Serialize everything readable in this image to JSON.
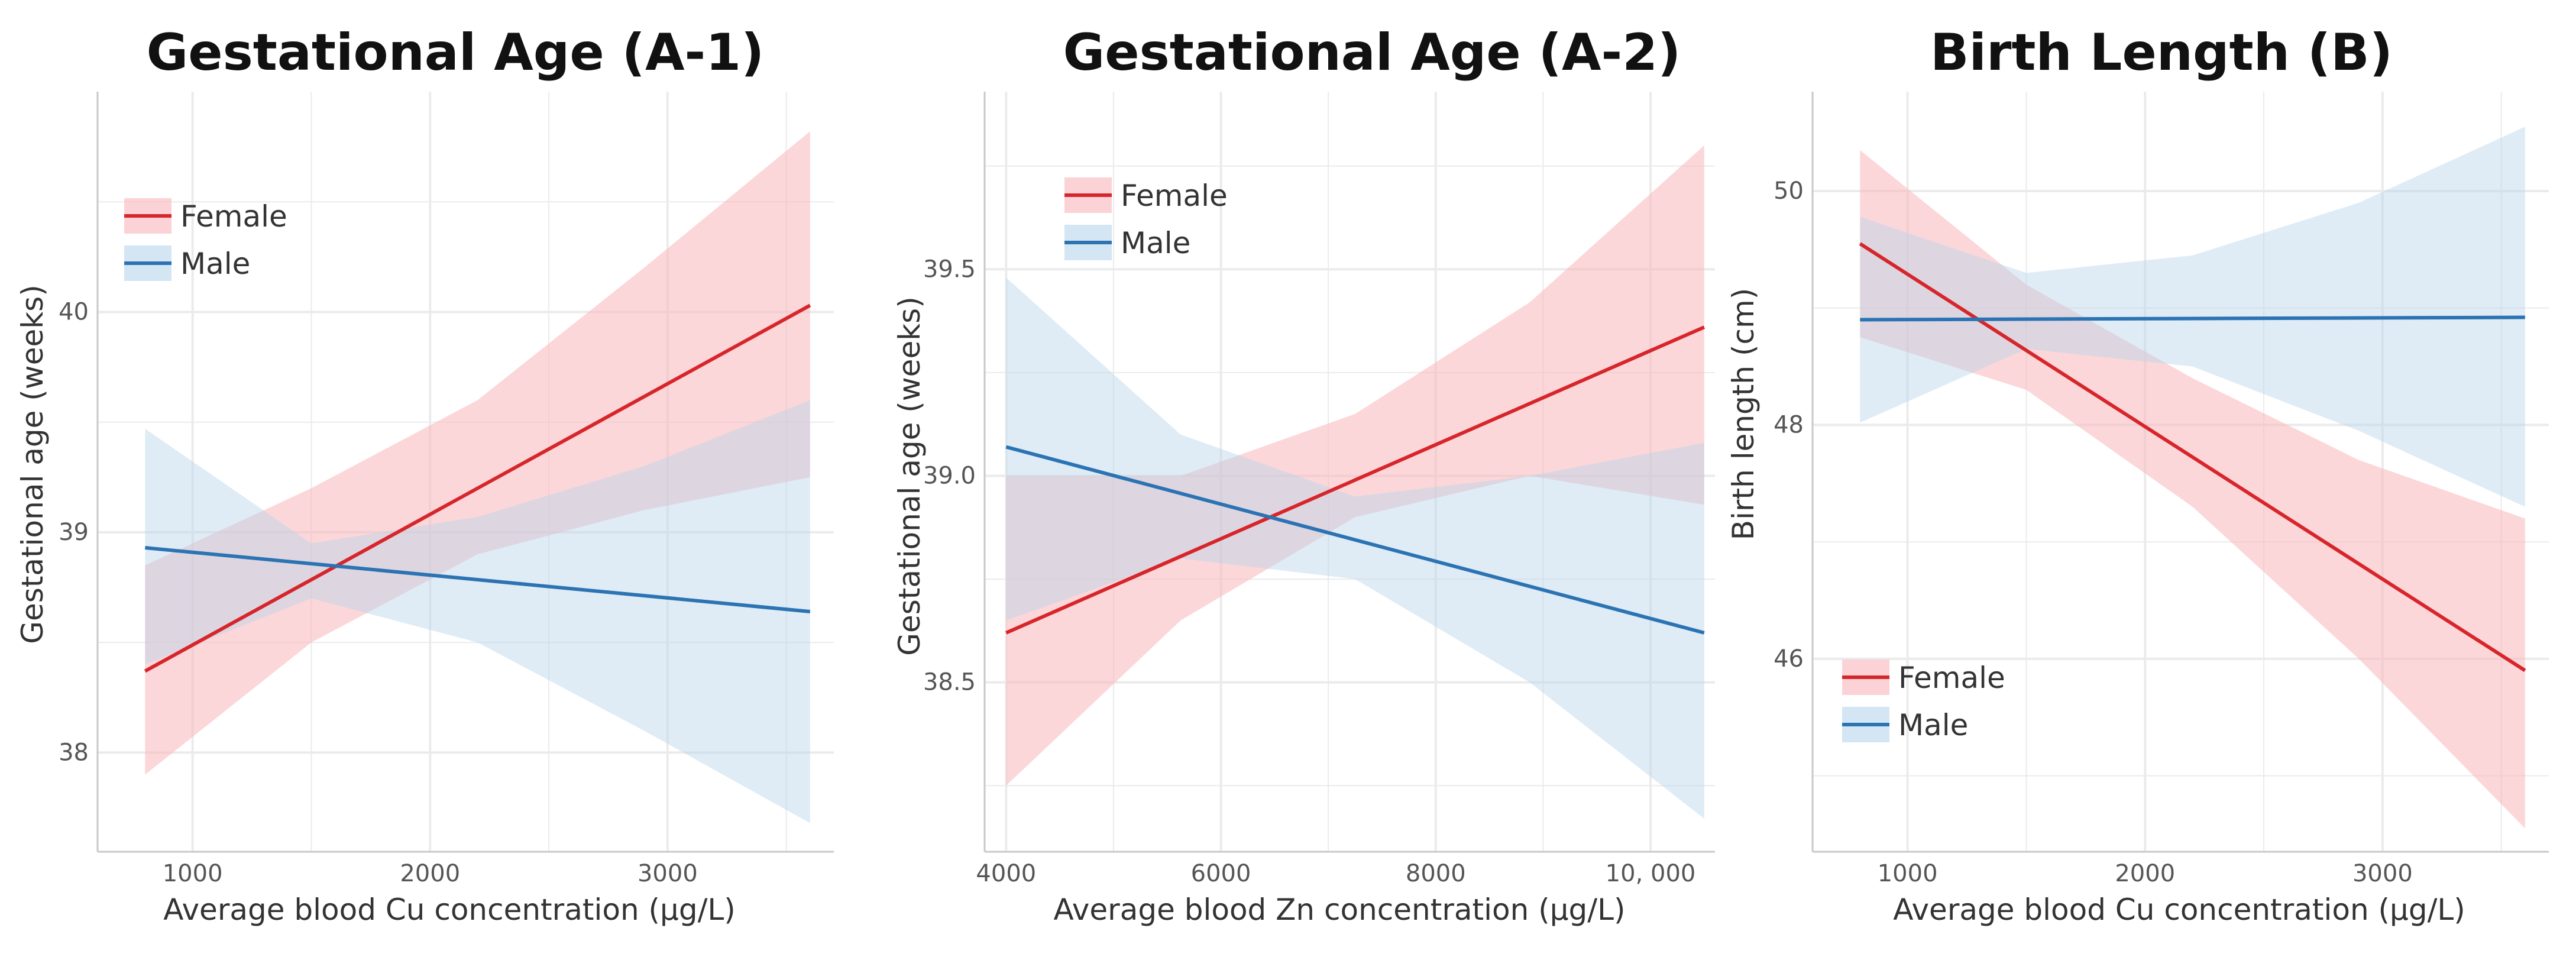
{
  "colors": {
    "female_line": "#d7262b",
    "male_line": "#2c73b3",
    "female_band": "#f9b6ba",
    "male_band": "#b8d4ec",
    "grid": "#ebebeb",
    "axis": "#c8c8c8"
  },
  "chart_data": [
    {
      "type": "line",
      "title": "Gestational Age (A-1)",
      "xlabel": "Average blood Cu concentration (µg/L)",
      "ylabel": "Gestational age (weeks)",
      "xlim": [
        600,
        3700
      ],
      "ylim": [
        37.55,
        41.0
      ],
      "xticks": [
        1000,
        2000,
        3000
      ],
      "xtick_labels": [
        "1000",
        "2000",
        "3000"
      ],
      "yticks": [
        38,
        39,
        40
      ],
      "ytick_labels": [
        "38",
        "39",
        "40"
      ],
      "legend_position": "top-left",
      "series": [
        {
          "name": "Female",
          "key": "female",
          "x": [
            800,
            3600
          ],
          "y": [
            38.37,
            40.03
          ],
          "band_x": [
            800,
            1500,
            2200,
            2900,
            3600
          ],
          "band_lower": [
            37.9,
            38.5,
            38.9,
            39.1,
            39.25
          ],
          "band_upper": [
            38.85,
            39.2,
            39.6,
            40.2,
            40.82
          ]
        },
        {
          "name": "Male",
          "key": "male",
          "x": [
            800,
            3600
          ],
          "y": [
            38.93,
            38.64
          ],
          "band_x": [
            800,
            1500,
            2200,
            2900,
            3600
          ],
          "band_lower": [
            38.4,
            38.7,
            38.5,
            38.1,
            37.68
          ],
          "band_upper": [
            39.47,
            38.95,
            39.07,
            39.3,
            39.6
          ]
        }
      ]
    },
    {
      "type": "line",
      "title": "Gestational Age (A-2)",
      "xlabel": "Average blood Zn concentration (µg/L)",
      "ylabel": "Gestational age (weeks)",
      "xlim": [
        3800,
        10600
      ],
      "ylim": [
        38.09,
        39.93
      ],
      "xticks": [
        4000,
        6000,
        8000,
        10000
      ],
      "xtick_labels": [
        "4000",
        "6000",
        "8000",
        "10, 000"
      ],
      "yticks": [
        38.5,
        39.0,
        39.5
      ],
      "ytick_labels": [
        "38.5",
        "39.0",
        "39.5"
      ],
      "legend_position": "top-left",
      "series": [
        {
          "name": "Female",
          "key": "female",
          "x": [
            4000,
            10500
          ],
          "y": [
            38.62,
            39.36
          ],
          "band_x": [
            4000,
            5625,
            7250,
            8875,
            10500
          ],
          "band_lower": [
            38.25,
            38.65,
            38.9,
            39.0,
            38.93
          ],
          "band_upper": [
            39.0,
            39.0,
            39.15,
            39.42,
            39.8
          ]
        },
        {
          "name": "Male",
          "key": "male",
          "x": [
            4000,
            10500
          ],
          "y": [
            39.07,
            38.62
          ],
          "band_x": [
            4000,
            5625,
            7250,
            8875,
            10500
          ],
          "band_lower": [
            38.65,
            38.8,
            38.75,
            38.5,
            38.17
          ],
          "band_upper": [
            39.48,
            39.1,
            38.95,
            39.0,
            39.08
          ]
        }
      ]
    },
    {
      "type": "line",
      "title": "Birth Length (B)",
      "xlabel": "Average blood Cu concentration (µg/L)",
      "ylabel": "Birth length (cm)",
      "xlim": [
        600,
        3700
      ],
      "ylim": [
        44.35,
        50.85
      ],
      "xticks": [
        1000,
        2000,
        3000
      ],
      "xtick_labels": [
        "1000",
        "2000",
        "3000"
      ],
      "yticks": [
        46,
        48,
        50
      ],
      "ytick_labels": [
        "46",
        "48",
        "50"
      ],
      "legend_position": "bottom-left",
      "series": [
        {
          "name": "Female",
          "key": "female",
          "x": [
            800,
            3600
          ],
          "y": [
            49.55,
            45.9
          ],
          "band_x": [
            800,
            1500,
            2200,
            2900,
            3600
          ],
          "band_lower": [
            48.75,
            48.3,
            47.3,
            46.0,
            44.55
          ],
          "band_upper": [
            50.35,
            49.2,
            48.4,
            47.7,
            47.2
          ]
        },
        {
          "name": "Male",
          "key": "male",
          "x": [
            800,
            3600
          ],
          "y": [
            48.9,
            48.92
          ],
          "band_x": [
            800,
            1500,
            2200,
            2900,
            3600
          ],
          "band_lower": [
            48.02,
            48.65,
            48.5,
            47.95,
            47.3
          ],
          "band_upper": [
            49.78,
            49.3,
            49.45,
            49.9,
            50.55
          ]
        }
      ]
    }
  ]
}
